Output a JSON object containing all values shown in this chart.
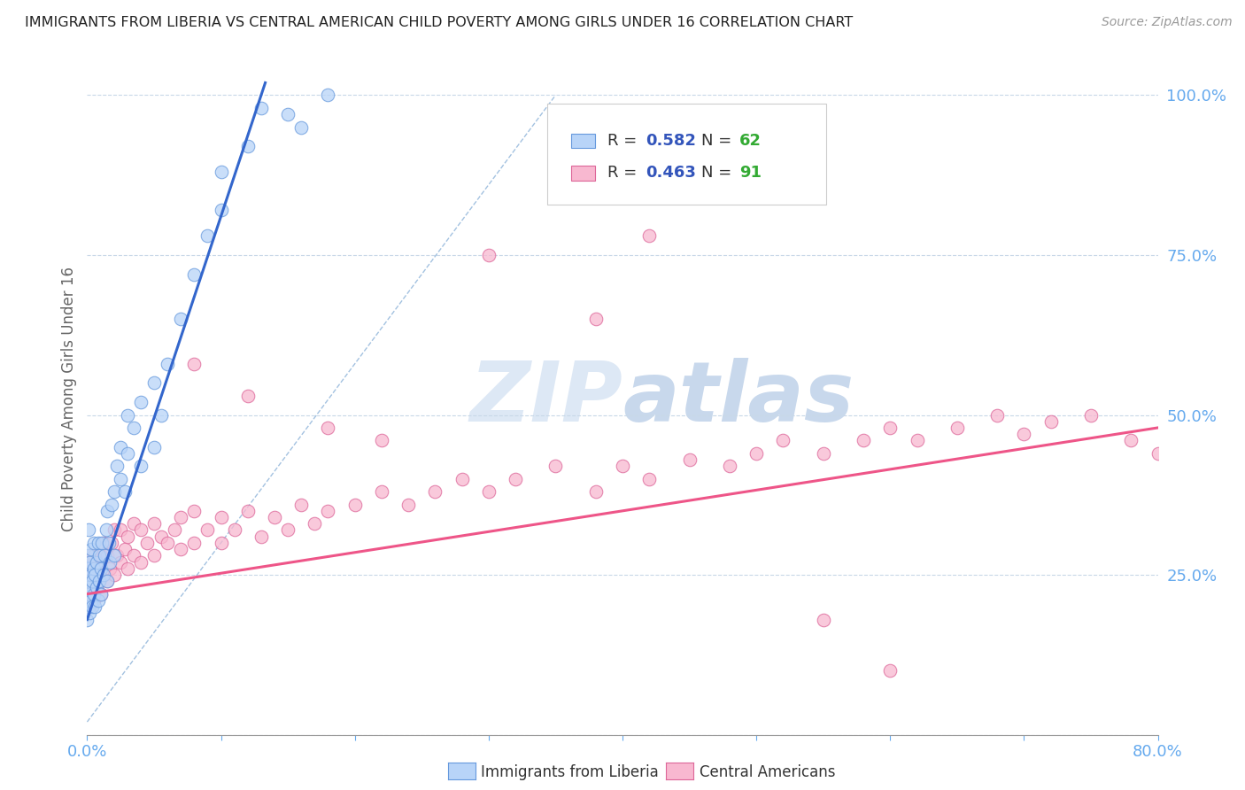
{
  "title": "IMMIGRANTS FROM LIBERIA VS CENTRAL AMERICAN CHILD POVERTY AMONG GIRLS UNDER 16 CORRELATION CHART",
  "source": "Source: ZipAtlas.com",
  "ylabel": "Child Poverty Among Girls Under 16",
  "xlim": [
    0,
    0.8
  ],
  "ylim": [
    0.0,
    1.05
  ],
  "liberia_R": 0.582,
  "liberia_N": 62,
  "central_R": 0.463,
  "central_N": 91,
  "liberia_fill": "#b8d4f8",
  "liberia_edge": "#6699dd",
  "central_fill": "#f8b8d0",
  "central_edge": "#dd6699",
  "liberia_line_color": "#3366cc",
  "central_line_color": "#ee5588",
  "diagonal_color": "#99bbdd",
  "watermark_color": "#dde8f5",
  "title_color": "#222222",
  "axis_label_color": "#66aaee",
  "legend_R_color": "#3355bb",
  "legend_N_color": "#33aa33",
  "liberia_x": [
    0.0,
    0.0,
    0.0,
    0.001,
    0.001,
    0.001,
    0.001,
    0.002,
    0.002,
    0.002,
    0.003,
    0.003,
    0.003,
    0.004,
    0.004,
    0.005,
    0.005,
    0.005,
    0.006,
    0.006,
    0.007,
    0.007,
    0.008,
    0.008,
    0.009,
    0.009,
    0.01,
    0.01,
    0.011,
    0.012,
    0.013,
    0.014,
    0.015,
    0.015,
    0.016,
    0.017,
    0.018,
    0.02,
    0.02,
    0.022,
    0.025,
    0.025,
    0.028,
    0.03,
    0.03,
    0.035,
    0.04,
    0.04,
    0.05,
    0.05,
    0.055,
    0.06,
    0.07,
    0.08,
    0.09,
    0.1,
    0.1,
    0.12,
    0.13,
    0.15,
    0.16,
    0.18
  ],
  "liberia_y": [
    0.18,
    0.22,
    0.26,
    0.2,
    0.24,
    0.28,
    0.32,
    0.19,
    0.23,
    0.27,
    0.21,
    0.25,
    0.29,
    0.2,
    0.24,
    0.22,
    0.26,
    0.3,
    0.2,
    0.25,
    0.23,
    0.27,
    0.21,
    0.3,
    0.24,
    0.28,
    0.22,
    0.26,
    0.3,
    0.25,
    0.28,
    0.32,
    0.24,
    0.35,
    0.3,
    0.27,
    0.36,
    0.28,
    0.38,
    0.42,
    0.4,
    0.45,
    0.38,
    0.44,
    0.5,
    0.48,
    0.52,
    0.42,
    0.55,
    0.45,
    0.5,
    0.58,
    0.65,
    0.72,
    0.78,
    0.82,
    0.88,
    0.92,
    0.98,
    0.97,
    0.95,
    1.0
  ],
  "central_x": [
    0.0,
    0.0,
    0.001,
    0.001,
    0.002,
    0.002,
    0.003,
    0.003,
    0.004,
    0.005,
    0.005,
    0.006,
    0.007,
    0.008,
    0.009,
    0.01,
    0.01,
    0.012,
    0.012,
    0.015,
    0.015,
    0.017,
    0.018,
    0.02,
    0.02,
    0.022,
    0.025,
    0.025,
    0.028,
    0.03,
    0.03,
    0.035,
    0.035,
    0.04,
    0.04,
    0.045,
    0.05,
    0.05,
    0.055,
    0.06,
    0.065,
    0.07,
    0.07,
    0.08,
    0.08,
    0.09,
    0.1,
    0.1,
    0.11,
    0.12,
    0.13,
    0.14,
    0.15,
    0.16,
    0.17,
    0.18,
    0.2,
    0.22,
    0.24,
    0.26,
    0.28,
    0.3,
    0.32,
    0.35,
    0.38,
    0.4,
    0.42,
    0.45,
    0.48,
    0.5,
    0.52,
    0.55,
    0.58,
    0.6,
    0.62,
    0.65,
    0.68,
    0.7,
    0.72,
    0.75,
    0.78,
    0.8,
    0.3,
    0.42,
    0.38,
    0.22,
    0.18,
    0.12,
    0.08,
    0.55,
    0.6
  ],
  "central_y": [
    0.2,
    0.25,
    0.22,
    0.27,
    0.2,
    0.26,
    0.23,
    0.28,
    0.24,
    0.21,
    0.28,
    0.25,
    0.23,
    0.26,
    0.24,
    0.22,
    0.28,
    0.25,
    0.3,
    0.24,
    0.28,
    0.26,
    0.3,
    0.25,
    0.32,
    0.28,
    0.27,
    0.32,
    0.29,
    0.26,
    0.31,
    0.28,
    0.33,
    0.27,
    0.32,
    0.3,
    0.28,
    0.33,
    0.31,
    0.3,
    0.32,
    0.29,
    0.34,
    0.3,
    0.35,
    0.32,
    0.3,
    0.34,
    0.32,
    0.35,
    0.31,
    0.34,
    0.32,
    0.36,
    0.33,
    0.35,
    0.36,
    0.38,
    0.36,
    0.38,
    0.4,
    0.38,
    0.4,
    0.42,
    0.38,
    0.42,
    0.4,
    0.43,
    0.42,
    0.44,
    0.46,
    0.44,
    0.46,
    0.48,
    0.46,
    0.48,
    0.5,
    0.47,
    0.49,
    0.5,
    0.46,
    0.44,
    0.75,
    0.78,
    0.65,
    0.46,
    0.48,
    0.53,
    0.58,
    0.18,
    0.1
  ]
}
